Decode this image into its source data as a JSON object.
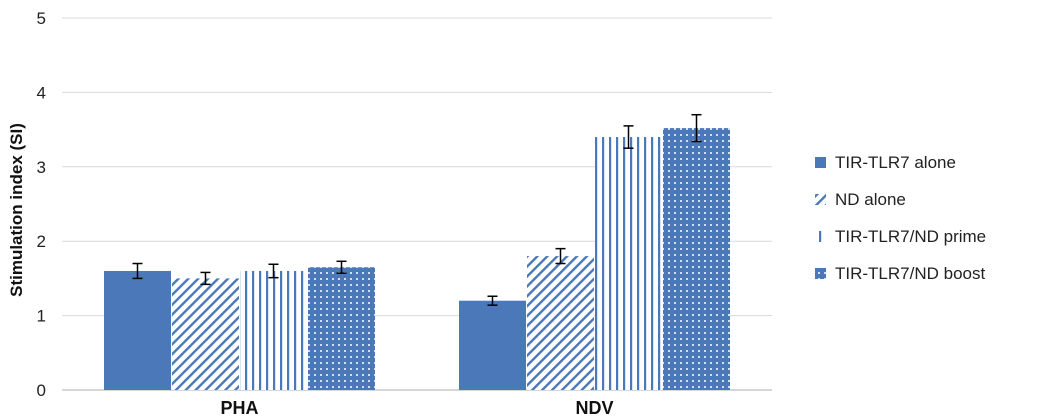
{
  "chart_data": {
    "type": "bar",
    "title": "",
    "xlabel": "",
    "ylabel": "Stimulation index (SI)",
    "ylim": [
      0,
      5
    ],
    "yticks": [
      0,
      1,
      2,
      3,
      4,
      5
    ],
    "grid": true,
    "legend_position": "right",
    "categories": [
      "PHA",
      "NDV"
    ],
    "series": [
      {
        "name": "TIR-TLR7 alone",
        "pattern": "solid",
        "color": "#4a78b8",
        "values": [
          1.6,
          1.2
        ],
        "errors": [
          0.1,
          0.06
        ]
      },
      {
        "name": "ND alone",
        "pattern": "diagonal-stripes",
        "color": "#4a78b8",
        "values": [
          1.5,
          1.8
        ],
        "errors": [
          0.08,
          0.1
        ]
      },
      {
        "name": "TIR-TLR7/ND prime",
        "pattern": "vertical-stripes",
        "color": "#4a78b8",
        "values": [
          1.6,
          3.4
        ],
        "errors": [
          0.09,
          0.15
        ]
      },
      {
        "name": "TIR-TLR7/ND boost",
        "pattern": "dotted",
        "color": "#4a78b8",
        "values": [
          1.65,
          3.52
        ],
        "errors": [
          0.08,
          0.18
        ]
      }
    ]
  }
}
